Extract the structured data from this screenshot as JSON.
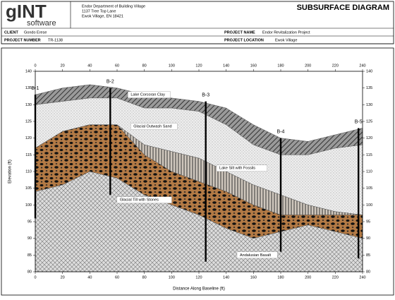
{
  "header": {
    "logo": {
      "title": "gINT",
      "subtitle": "software"
    },
    "company": [
      "Endor Department of Building Village",
      "1137 Tree Top Lane",
      "Ewok Village, EN 18421"
    ],
    "title": "SUBSURFACE DIAGRAM",
    "client": {
      "label": "CLIENT",
      "value": "Gondo Erese"
    },
    "project_name": {
      "label": "PROJECT NAME",
      "value": "Endor Revitalization Project"
    },
    "project_number": {
      "label": "PROJECT NUMBER",
      "value": "TR-1138"
    },
    "project_location": {
      "label": "PROJECT LOCATION",
      "value": "Ewok Village"
    }
  },
  "chart_data": {
    "type": "cross-section",
    "xlabel": "Distance Along Baseline (ft)",
    "ylabel": "Elevation (ft)",
    "xlim": [
      0,
      240
    ],
    "ylim": [
      80,
      140
    ],
    "xticks": [
      0,
      20,
      40,
      60,
      80,
      100,
      120,
      140,
      160,
      180,
      200,
      220,
      240
    ],
    "yticks": [
      80,
      85,
      90,
      95,
      100,
      105,
      110,
      115,
      120,
      125,
      130,
      135,
      140
    ],
    "x": [
      0,
      20,
      40,
      60,
      80,
      100,
      120,
      140,
      160,
      180,
      200,
      220,
      240
    ],
    "ground": [
      133,
      135,
      136,
      135,
      133,
      132,
      131,
      129,
      124,
      120,
      119,
      121,
      123
    ],
    "layers": [
      {
        "name": "Lake Corcoran Clay",
        "color": "#7a7a7a",
        "bottom": [
          130,
          131,
          132,
          132,
          129,
          129,
          128,
          124,
          118,
          115,
          115,
          117,
          118
        ]
      },
      {
        "name": "Glacial Outwash Sand",
        "color": "#ececec",
        "bottom": [
          117,
          122,
          124,
          124,
          118,
          116,
          114,
          110,
          106,
          103,
          100,
          98,
          97
        ]
      },
      {
        "name": "Lake Silt with Fossils",
        "color": "#c8c8c8",
        "bottom": [
          117,
          122,
          124,
          124,
          115,
          110,
          107,
          104,
          100,
          97,
          97,
          97,
          97
        ]
      },
      {
        "name": "Glacial Till with Stones",
        "color": "#b37a45",
        "bottom": [
          104,
          106,
          110,
          108,
          103,
          100,
          97,
          93,
          90,
          92,
          94,
          92,
          90
        ]
      },
      {
        "name": "Andalusian Basalt",
        "color": "#d4d4d4"
      }
    ],
    "borings": [
      {
        "name": "B-1",
        "x": 0,
        "top": 133,
        "bottom": 96
      },
      {
        "name": "B-2",
        "x": 55,
        "top": 135,
        "bottom": 103
      },
      {
        "name": "B-3",
        "x": 125,
        "top": 131,
        "bottom": 83
      },
      {
        "name": "B-4",
        "x": 180,
        "top": 120,
        "bottom": 86
      },
      {
        "name": "B-5",
        "x": 237,
        "top": 123,
        "bottom": 84
      }
    ]
  }
}
